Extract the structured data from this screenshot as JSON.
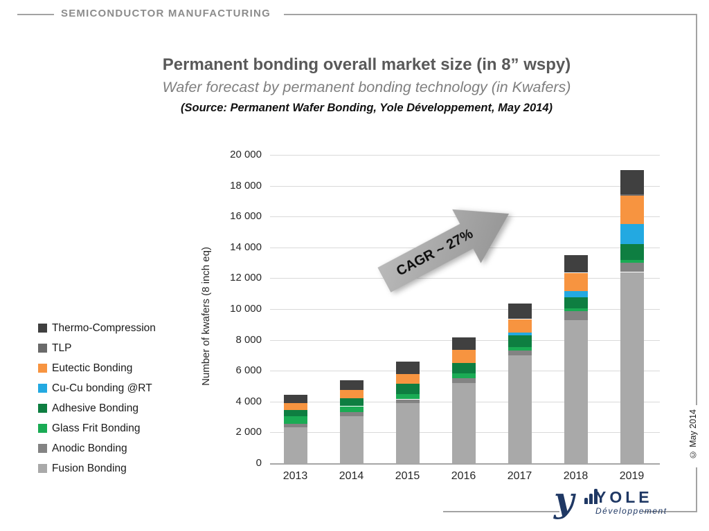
{
  "header": {
    "label": "SEMICONDUCTOR MANUFACTURING"
  },
  "titles": {
    "title": "Permanent bonding overall market size (in 8” wspy)",
    "subtitle": "Wafer forecast by permanent bonding technology (in Kwafers)",
    "source": "(Source: Permanent Wafer Bonding, Yole Développement, May 2014)"
  },
  "chart_data": {
    "type": "bar",
    "stacked": true,
    "title": "Permanent bonding overall market size (in 8” wspy)",
    "xlabel": "",
    "ylabel": "Number of kwafers (8 inch eq)",
    "ylim": [
      0,
      20000
    ],
    "ytick_step": 2000,
    "grid": true,
    "legend_position": "left",
    "categories": [
      "2013",
      "2014",
      "2015",
      "2016",
      "2017",
      "2018",
      "2019"
    ],
    "series": [
      {
        "name": "Fusion Bonding",
        "color": "#a9a9a9",
        "values": [
          2350,
          3050,
          3900,
          5200,
          7000,
          9300,
          12400
        ]
      },
      {
        "name": "Anodic Bonding",
        "color": "#838383",
        "values": [
          200,
          250,
          250,
          300,
          300,
          550,
          600
        ]
      },
      {
        "name": "Glass Frit Bonding",
        "color": "#1aab54",
        "values": [
          500,
          400,
          350,
          350,
          250,
          200,
          200
        ]
      },
      {
        "name": "Adhesive Bonding",
        "color": "#0e7e41",
        "values": [
          400,
          500,
          650,
          650,
          750,
          700,
          1000
        ]
      },
      {
        "name": "Cu-Cu bonding @RT",
        "color": "#23a9e1",
        "values": [
          0,
          0,
          0,
          0,
          200,
          400,
          1300
        ]
      },
      {
        "name": "Eutectic Bonding",
        "color": "#f79440",
        "values": [
          450,
          550,
          650,
          850,
          850,
          1200,
          1850
        ]
      },
      {
        "name": "TLP",
        "color": "#6a6a6a",
        "values": [
          0,
          0,
          0,
          0,
          0,
          0,
          100
        ]
      },
      {
        "name": "Thermo-Compression",
        "color": "#404040",
        "values": [
          550,
          650,
          800,
          800,
          1000,
          1150,
          1550
        ]
      }
    ],
    "totals": [
      4450,
      5400,
      6600,
      8150,
      10350,
      13500,
      19000
    ],
    "annotation": "CAGR ~ 27%"
  },
  "footer": {
    "copyright": "© May 2014",
    "logo_name": "YOLE",
    "logo_sub": "Développement"
  }
}
